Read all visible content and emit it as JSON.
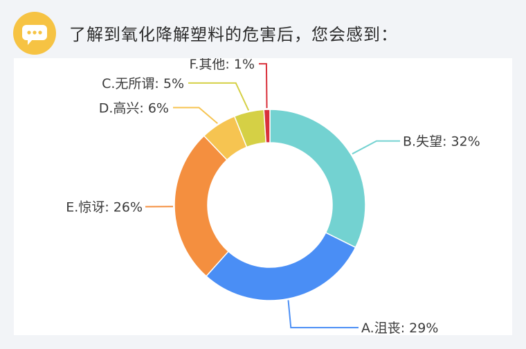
{
  "question": {
    "text": "了解到氧化降解塑料的危害后，您会感到：",
    "icon": "chat-bubble-icon"
  },
  "colors": {
    "icon_bg": "#f6c343",
    "card_bg": "#ffffff",
    "page_bg": "#f2f4f7"
  },
  "chart_data": {
    "type": "pie",
    "donut": true,
    "slices": [
      {
        "label": "B.失望",
        "value": 32,
        "color": "#73d2d1"
      },
      {
        "label": "A.沮丧",
        "value": 29,
        "color": "#4a8ef5"
      },
      {
        "label": "E.惊讶",
        "value": 26,
        "color": "#f48f3f"
      },
      {
        "label": "D.高兴",
        "value": 6,
        "color": "#f6c451"
      },
      {
        "label": "C.无所谓",
        "value": 5,
        "color": "#d5d045"
      },
      {
        "label": "F.其他",
        "value": 1,
        "color": "#d9303b"
      }
    ],
    "labels": [
      {
        "text": "B.失望: 32%"
      },
      {
        "text": "A.沮丧: 29%"
      },
      {
        "text": "E.惊讶: 26%"
      },
      {
        "text": "D.高兴: 6%"
      },
      {
        "text": "C.无所谓: 5%"
      },
      {
        "text": "F.其他: 1%"
      }
    ]
  }
}
